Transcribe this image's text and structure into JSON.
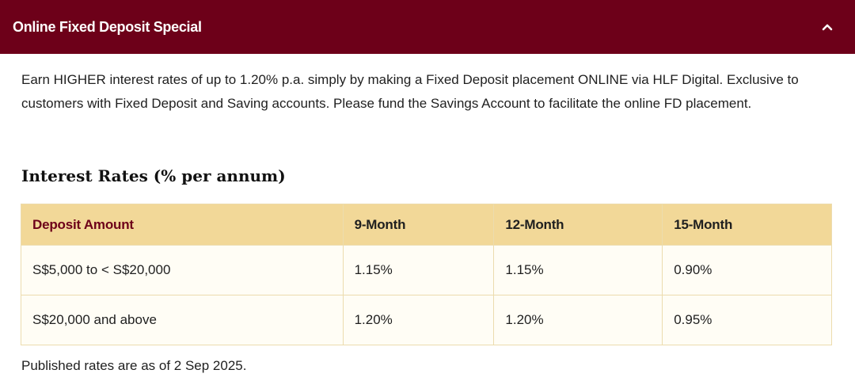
{
  "accordion": {
    "title": "Online Fixed Deposit Special",
    "toggle_icon": "chevron-up-icon"
  },
  "intro": "Earn HIGHER interest rates of up to 1.20% p.a. simply by making a Fixed Deposit placement ONLINE via HLF Digital. Exclusive to customers with Fixed Deposit and Saving accounts. Please fund the Savings Account to facilitate the online FD placement.",
  "rates": {
    "heading": "Interest Rates (% per annum)",
    "headers": [
      "Deposit Amount",
      "9-Month",
      "12-Month",
      "15-Month"
    ],
    "rows": [
      [
        "S$5,000 to < S$20,000",
        "1.15%",
        "1.15%",
        "0.90%"
      ],
      [
        "S$20,000 and above",
        "1.20%",
        "1.20%",
        "0.95%"
      ]
    ]
  },
  "footnote": "Published rates are as of 2 Sep 2025.",
  "colors": {
    "header_bg": "#6d0019",
    "table_header_bg": "#f2d898",
    "table_row_bg": "#fffdf5",
    "table_border": "#ecdcae",
    "accent_text": "#6d0019"
  }
}
